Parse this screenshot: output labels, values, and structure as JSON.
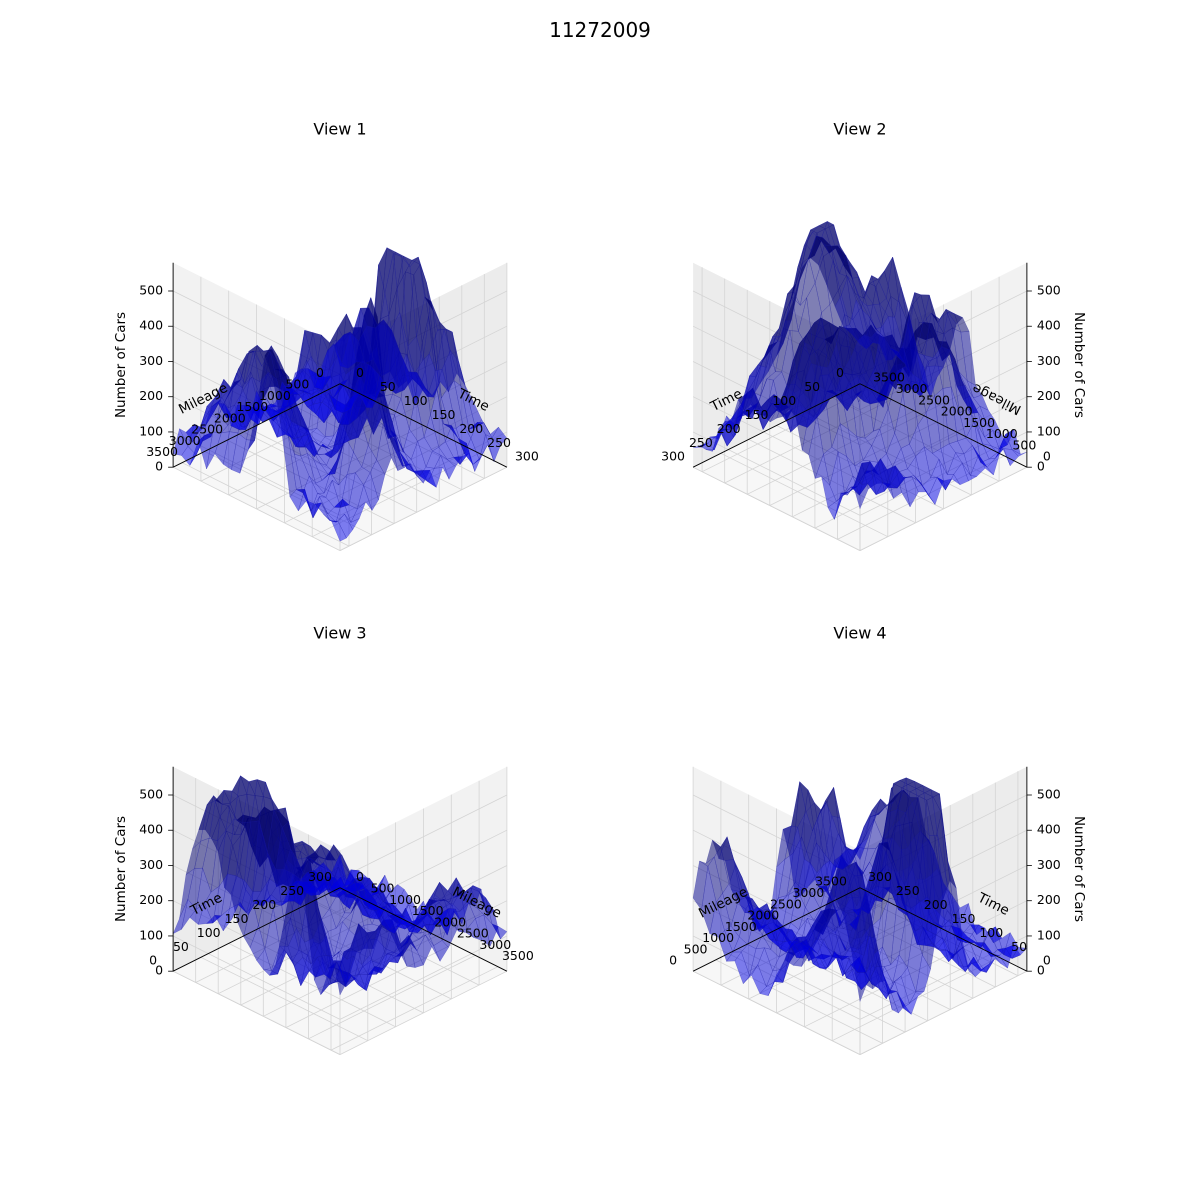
{
  "figure": {
    "title": "11272009"
  },
  "chart_data": [
    {
      "type": "surface3d",
      "title": "View 1",
      "xlabel": "Mileage",
      "ylabel": "Time",
      "zlabel": "Number of Cars",
      "xlim": [
        0,
        3700
      ],
      "ylim": [
        0,
        300
      ],
      "zlim": [
        0,
        580
      ],
      "xticks": [
        0,
        500,
        1000,
        1500,
        2000,
        2500,
        3000,
        3500
      ],
      "yticks": [
        0,
        50,
        100,
        150,
        200,
        250,
        300
      ],
      "zticks": [
        0,
        100,
        200,
        300,
        400,
        500
      ],
      "view": {
        "elev": 30,
        "azim": 45
      },
      "surface_color": "#0000ff",
      "surface_alpha": 0.5
    },
    {
      "type": "surface3d",
      "title": "View 2",
      "xlabel": "Mileage",
      "ylabel": "Time",
      "zlabel": "Number of Cars",
      "xlim": [
        0,
        3700
      ],
      "ylim": [
        0,
        300
      ],
      "zlim": [
        0,
        580
      ],
      "xticks": [
        0,
        500,
        1000,
        1500,
        2000,
        2500,
        3000,
        3500
      ],
      "yticks": [
        0,
        50,
        100,
        150,
        200,
        250,
        300
      ],
      "zticks": [
        0,
        100,
        200,
        300,
        400,
        500
      ],
      "view": {
        "elev": 30,
        "azim": 135
      },
      "surface_color": "#0000ff",
      "surface_alpha": 0.5
    },
    {
      "type": "surface3d",
      "title": "View 3",
      "xlabel": "Mileage",
      "ylabel": "Time",
      "zlabel": "Number of Cars",
      "xlim": [
        0,
        3700
      ],
      "ylim": [
        0,
        300
      ],
      "zlim": [
        0,
        580
      ],
      "xticks": [
        0,
        500,
        1000,
        1500,
        2000,
        2500,
        3000,
        3500
      ],
      "yticks": [
        0,
        50,
        100,
        150,
        200,
        250,
        300
      ],
      "zticks": [
        0,
        100,
        200,
        300,
        400,
        500
      ],
      "view": {
        "elev": 30,
        "azim": -45
      },
      "surface_color": "#0000ff",
      "surface_alpha": 0.5
    },
    {
      "type": "surface3d",
      "title": "View 4",
      "xlabel": "Mileage",
      "ylabel": "Time",
      "zlabel": "Number of Cars",
      "xlim": [
        0,
        3700
      ],
      "ylim": [
        0,
        300
      ],
      "zlim": [
        0,
        580
      ],
      "xticks": [
        0,
        500,
        1000,
        1500,
        2000,
        2500,
        3000,
        3500
      ],
      "yticks": [
        0,
        50,
        100,
        150,
        200,
        250,
        300
      ],
      "zticks": [
        0,
        100,
        200,
        300,
        400,
        500
      ],
      "view": {
        "elev": 30,
        "azim": -135
      },
      "surface_color": "#0000ff",
      "surface_alpha": 0.5
    }
  ]
}
